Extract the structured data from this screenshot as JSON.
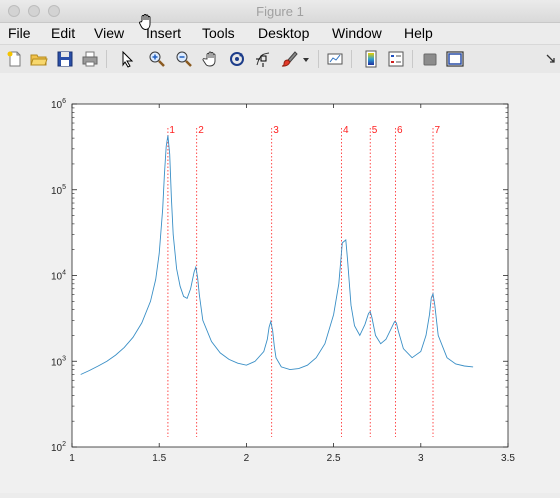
{
  "window": {
    "title": "Figure 1"
  },
  "menu": {
    "items": [
      "File",
      "Edit",
      "View",
      "Insert",
      "Tools",
      "Desktop",
      "Window",
      "Help"
    ]
  },
  "toolbar": {
    "icons": [
      "new-figure-icon",
      "open-file-icon",
      "save-icon",
      "print-icon",
      "pointer-icon",
      "zoom-in-icon",
      "zoom-out-icon",
      "pan-icon",
      "rotate-3d-icon",
      "data-cursor-icon",
      "brush-icon",
      "brush-dropdown-icon",
      "link-plot-icon",
      "insert-colorbar-icon",
      "insert-legend-icon",
      "hide-plot-tools-icon",
      "show-plot-tools-icon"
    ]
  },
  "chart_data": {
    "type": "line",
    "title": "",
    "xlabel": "",
    "ylabel": "",
    "xlim": [
      1,
      3.5
    ],
    "ylim": [
      100,
      1000000
    ],
    "yscale": "log",
    "grid": false,
    "line_color": "#3a8fc6",
    "marker_color": "#ff2020",
    "x_ticks": [
      "1",
      "1.5",
      "2",
      "2.5",
      "3",
      "3.5"
    ],
    "y_ticks": [
      {
        "base": "10",
        "exp": "2"
      },
      {
        "base": "10",
        "exp": "3"
      },
      {
        "base": "10",
        "exp": "4"
      },
      {
        "base": "10",
        "exp": "5"
      },
      {
        "base": "10",
        "exp": "6"
      }
    ],
    "peaks": [
      {
        "label": "1",
        "x": 1.55
      },
      {
        "label": "2",
        "x": 1.715
      },
      {
        "label": "3",
        "x": 2.145
      },
      {
        "label": "4",
        "x": 2.545
      },
      {
        "label": "5",
        "x": 2.71
      },
      {
        "label": "6",
        "x": 2.855
      },
      {
        "label": "7",
        "x": 3.07
      }
    ],
    "series": [
      {
        "x": [
          1.05,
          1.1,
          1.15,
          1.2,
          1.25,
          1.3,
          1.35,
          1.4,
          1.45,
          1.48,
          1.5,
          1.52,
          1.53,
          1.54,
          1.55,
          1.56,
          1.57,
          1.58,
          1.6,
          1.62,
          1.64,
          1.66,
          1.68,
          1.7,
          1.71,
          1.72,
          1.73,
          1.75,
          1.8,
          1.85,
          1.9,
          1.95,
          2.0,
          2.05,
          2.1,
          2.12,
          2.13,
          2.14,
          2.15,
          2.16,
          2.17,
          2.2,
          2.25,
          2.3,
          2.35,
          2.4,
          2.45,
          2.5,
          2.53,
          2.55,
          2.57,
          2.58,
          2.6,
          2.62,
          2.65,
          2.68,
          2.7,
          2.71,
          2.72,
          2.74,
          2.77,
          2.8,
          2.83,
          2.85,
          2.86,
          2.87,
          2.9,
          2.95,
          3.0,
          3.03,
          3.05,
          3.06,
          3.07,
          3.08,
          3.1,
          3.15,
          3.2,
          3.25,
          3.3
        ],
        "y": [
          700,
          780,
          880,
          1000,
          1180,
          1450,
          1900,
          2800,
          5000,
          9000,
          18000,
          60000,
          150000,
          320000,
          430000,
          260000,
          80000,
          30000,
          12000,
          7500,
          5700,
          5400,
          7000,
          11000,
          12500,
          9500,
          6000,
          3000,
          1700,
          1250,
          1050,
          950,
          900,
          1000,
          1300,
          1800,
          2500,
          2900,
          2300,
          1500,
          1100,
          860,
          800,
          820,
          900,
          1100,
          1600,
          3500,
          8000,
          24000,
          26000,
          15000,
          4500,
          2600,
          2000,
          2700,
          3600,
          3800,
          3200,
          2000,
          1600,
          1800,
          2400,
          2900,
          2800,
          2300,
          1400,
          1100,
          1300,
          2000,
          3500,
          5500,
          6100,
          4500,
          2000,
          1100,
          930,
          880,
          860
        ]
      }
    ]
  }
}
